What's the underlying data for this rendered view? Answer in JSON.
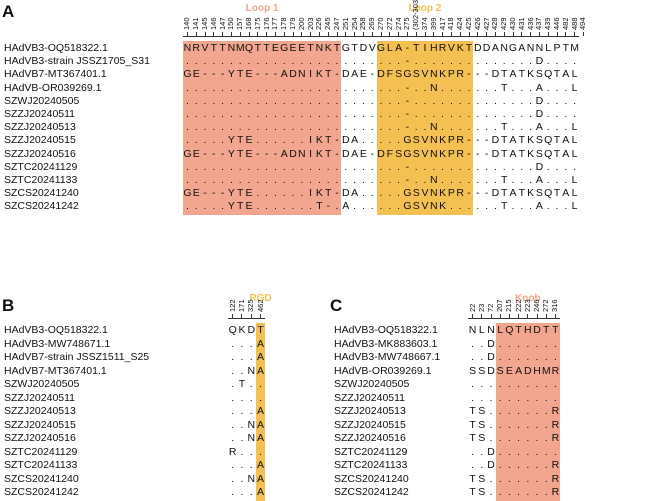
{
  "panels": [
    {
      "id": "A",
      "letter": "A",
      "regions": [
        {
          "label": "Loop 1",
          "start": 0,
          "end": 17,
          "color": "#f2a58f"
        },
        {
          "label": "Loop 2",
          "start": 22,
          "end": 32,
          "color": "#f3c051"
        }
      ],
      "positions": [
        "140",
        "141",
        "145",
        "146",
        "147",
        "150",
        "157",
        "168",
        "175",
        "176",
        "177",
        "178",
        "179",
        "200",
        "203",
        "226",
        "245",
        "247",
        "251",
        "254",
        "258",
        "269",
        "270",
        "272",
        "274",
        "275",
        "(302-303)",
        "374",
        "399",
        "417",
        "418",
        "424",
        "425",
        "426",
        "427",
        "428",
        "429",
        "430",
        "431",
        "436",
        "437",
        "439",
        "446",
        "482",
        "488",
        "494"
      ],
      "rows": [
        {
          "name": "HAdVB3-OQ518322.1",
          "cells": [
            "N",
            "R",
            "V",
            "T",
            "T",
            "N",
            "M",
            "Q",
            "T",
            "T",
            "E",
            "G",
            "E",
            "E",
            "T",
            "N",
            "K",
            "T",
            "G",
            "T",
            "D",
            "V",
            "G",
            "L",
            "A",
            "-",
            "T",
            "I",
            "H",
            "R",
            "V",
            "K",
            "T",
            "D",
            "D",
            "A",
            "N",
            "G",
            "A",
            "N",
            "N",
            "L",
            "P",
            "T",
            "M"
          ]
        },
        {
          "name": "HAdVB3-strain JSSZ1705_S31",
          "cells": [
            "",
            "",
            "",
            "",
            "",
            "",
            "",
            "",
            "",
            "",
            "",
            "",
            "",
            "",
            "",
            "",
            "",
            "",
            "",
            "",
            "",
            "",
            "",
            "",
            "",
            "-",
            "",
            "",
            "",
            "",
            "",
            "",
            "",
            "",
            "",
            "",
            "",
            "",
            "",
            "",
            "D",
            "",
            "",
            "",
            ""
          ]
        },
        {
          "name": "HAdVB7-MT367401.1",
          "cells": [
            "G",
            "E",
            "-",
            "-",
            "-",
            "Y",
            "T",
            "E",
            "-",
            "-",
            "-",
            "A",
            "D",
            "N",
            "I",
            "K",
            "T",
            "-",
            "D",
            "A",
            "E",
            "-",
            "D",
            "F",
            "S",
            "G",
            "S",
            "V",
            "N",
            "K",
            "P",
            "R",
            "-",
            "-",
            "-",
            "D",
            "T",
            "A",
            "T",
            "K",
            "S",
            "Q",
            "T",
            "A",
            "L"
          ]
        },
        {
          "name": "HAdVB-OR039269.1",
          "cells": [
            "",
            "",
            "",
            "",
            "",
            "",
            "",
            "",
            "",
            "",
            "",
            "",
            "",
            "",
            "",
            "",
            "",
            "",
            "",
            "",
            "",
            "",
            "",
            "",
            "",
            "-",
            "",
            "",
            "N",
            "",
            "",
            "",
            "",
            "",
            "",
            "",
            "T",
            "",
            "",
            "",
            "A",
            "",
            "",
            "",
            "L"
          ]
        },
        {
          "name": "SZWJ20240505",
          "cells": [
            "",
            "",
            "",
            "",
            "",
            "",
            "",
            "",
            "",
            "",
            "",
            "",
            "",
            "",
            "",
            "",
            "",
            "",
            "",
            "",
            "",
            "",
            "",
            "",
            "",
            "-",
            "",
            "",
            "",
            "",
            "",
            "",
            "",
            "",
            "",
            "",
            "",
            "",
            "",
            "",
            "D",
            "",
            "",
            "",
            ""
          ]
        },
        {
          "name": "SZZJ20240511",
          "cells": [
            "",
            "",
            "",
            "",
            "",
            "",
            "",
            "",
            "",
            "",
            "",
            "",
            "",
            "",
            "",
            "",
            "",
            "",
            "",
            "",
            "",
            "",
            "",
            "",
            "",
            "-",
            "",
            "",
            "",
            "",
            "",
            "",
            "",
            "",
            "",
            "",
            "",
            "",
            "",
            "",
            "D",
            "",
            "",
            "",
            ""
          ]
        },
        {
          "name": "SZZJ20240513",
          "cells": [
            "",
            "",
            "",
            "",
            "",
            "",
            "",
            "",
            "",
            "",
            "",
            "",
            "",
            "",
            "",
            "",
            "",
            "",
            "",
            "",
            "",
            "",
            "",
            "",
            "",
            "-",
            "",
            "",
            "N",
            "",
            "",
            "",
            "",
            "",
            "",
            "",
            "T",
            "",
            "",
            "",
            "A",
            "",
            "",
            "",
            "L"
          ]
        },
        {
          "name": "SZZJ20240515",
          "cells": [
            "",
            "",
            "",
            "",
            "",
            "Y",
            "T",
            "E",
            "",
            "",
            "",
            "",
            "",
            "",
            "I",
            "K",
            "T",
            "-",
            "D",
            "A",
            "",
            "",
            "",
            "",
            "",
            "G",
            "S",
            "V",
            "N",
            "K",
            "P",
            "R",
            "-",
            "-",
            "-",
            "D",
            "T",
            "A",
            "T",
            "K",
            "S",
            "Q",
            "T",
            "A",
            "L"
          ]
        },
        {
          "name": "SZZJ20240516",
          "cells": [
            "G",
            "E",
            "-",
            "-",
            "-",
            "Y",
            "T",
            "E",
            "-",
            "-",
            "-",
            "A",
            "D",
            "N",
            "I",
            "K",
            "T",
            "-",
            "D",
            "A",
            "E",
            "-",
            "D",
            "F",
            "S",
            "G",
            "S",
            "V",
            "N",
            "K",
            "P",
            "R",
            "-",
            "-",
            "-",
            "D",
            "T",
            "A",
            "T",
            "K",
            "S",
            "Q",
            "T",
            "A",
            "L"
          ]
        },
        {
          "name": "SZTC20241129",
          "cells": [
            "",
            "",
            "",
            "",
            "",
            "",
            "",
            "",
            "",
            "",
            "",
            "",
            "",
            "",
            "",
            "",
            "",
            "",
            "",
            "",
            "",
            "",
            "",
            "",
            "",
            "-",
            "",
            "",
            "",
            "",
            "",
            "",
            "",
            "",
            "",
            "",
            "",
            "",
            "",
            "",
            "D",
            "",
            "",
            "",
            ""
          ]
        },
        {
          "name": "SZTC20241133",
          "cells": [
            "",
            "",
            "",
            "",
            "",
            "",
            "",
            "",
            "",
            "",
            "",
            "",
            "",
            "",
            "",
            "",
            "",
            "",
            "",
            "",
            "",
            "",
            "",
            "",
            "",
            "-",
            "",
            "",
            "N",
            "",
            "",
            "",
            "",
            "",
            "",
            "",
            "T",
            "",
            "",
            "",
            "A",
            "",
            "",
            "",
            "L"
          ]
        },
        {
          "name": "SZCS20241240",
          "cells": [
            "G",
            "E",
            "-",
            "-",
            "-",
            "Y",
            "T",
            "E",
            "",
            "",
            "",
            "",
            "",
            "",
            "I",
            "K",
            "T",
            "-",
            "D",
            "A",
            "",
            "",
            "",
            "",
            "",
            "G",
            "S",
            "V",
            "N",
            "K",
            "P",
            "R",
            "-",
            "-",
            "-",
            "D",
            "T",
            "A",
            "T",
            "K",
            "S",
            "Q",
            "T",
            "A",
            "L"
          ]
        },
        {
          "name": "SZCS20241242",
          "cells": [
            "",
            "",
            "",
            "",
            "",
            "Y",
            "T",
            "E",
            "",
            "",
            "",
            "",
            "",
            "",
            "",
            "T",
            "-",
            "",
            "A",
            "",
            "",
            "",
            "",
            "",
            "",
            "G",
            "S",
            "V",
            "N",
            "K",
            "",
            "",
            "",
            "",
            "",
            "",
            "T",
            "",
            "",
            "",
            "A",
            "",
            "",
            "",
            "L"
          ]
        }
      ]
    },
    {
      "id": "B",
      "letter": "B",
      "regions": [
        {
          "label": "RGD",
          "start": 3,
          "end": 3,
          "color": "#f3c051"
        }
      ],
      "positions": [
        "122",
        "171",
        "325",
        "462"
      ],
      "rows": [
        {
          "name": "HAdVB3-OQ518322.1",
          "cells": [
            "Q",
            "K",
            "D",
            "T"
          ]
        },
        {
          "name": "HAdVB3-MW748671.1",
          "cells": [
            "",
            "",
            "",
            "A"
          ]
        },
        {
          "name": "HAdVB7-strain JSSZ1511_S25",
          "cells": [
            "",
            "",
            "",
            "A"
          ]
        },
        {
          "name": "HAdVB7-MT367401.1",
          "cells": [
            "",
            "",
            "N",
            "A"
          ]
        },
        {
          "name": "SZWJ20240505",
          "cells": [
            "",
            "T",
            "",
            ""
          ]
        },
        {
          "name": "SZZJ20240511",
          "cells": [
            "",
            "",
            "",
            ""
          ]
        },
        {
          "name": "SZZJ20240513",
          "cells": [
            "",
            "",
            "",
            "A"
          ]
        },
        {
          "name": "SZZJ20240515",
          "cells": [
            "",
            "",
            "N",
            "A"
          ]
        },
        {
          "name": "SZZJ20240516",
          "cells": [
            "",
            "",
            "N",
            "A"
          ]
        },
        {
          "name": "SZTC20241129",
          "cells": [
            "R",
            "",
            "",
            ""
          ]
        },
        {
          "name": "SZTC20241133",
          "cells": [
            "",
            "",
            "",
            "A"
          ]
        },
        {
          "name": "SZCS20241240",
          "cells": [
            "",
            "",
            "N",
            "A"
          ]
        },
        {
          "name": "SZCS20241242",
          "cells": [
            "",
            "",
            "",
            "A"
          ]
        }
      ]
    },
    {
      "id": "C",
      "letter": "C",
      "regions": [
        {
          "label": "Knob",
          "start": 3,
          "end": 9,
          "color": "#f2a58f"
        }
      ],
      "positions": [
        "22",
        "23",
        "72",
        "207",
        "215",
        "222",
        "223",
        "246",
        "272",
        "316"
      ],
      "rows": [
        {
          "name": "HAdVB3-OQ518322.1",
          "cells": [
            "N",
            "L",
            "N",
            "L",
            "Q",
            "T",
            "H",
            "D",
            "T",
            "T"
          ]
        },
        {
          "name": "HAdVB3-MK883603.1",
          "cells": [
            "",
            "",
            "D",
            "",
            "",
            "",
            "",
            "",
            "",
            ""
          ]
        },
        {
          "name": "HAdVB3-MW748667.1",
          "cells": [
            "",
            "",
            "D",
            "",
            "",
            "",
            "",
            "",
            "",
            ""
          ]
        },
        {
          "name": "HAdVB-OR039269.1",
          "cells": [
            "S",
            "S",
            "D",
            "S",
            "E",
            "A",
            "D",
            "H",
            "M",
            "R"
          ]
        },
        {
          "name": "SZWJ20240505",
          "cells": [
            "",
            "",
            "",
            "",
            "",
            "",
            "",
            "",
            "",
            ""
          ]
        },
        {
          "name": "SZZJ20240511",
          "cells": [
            "",
            "",
            "",
            "",
            "",
            "",
            "",
            "",
            "",
            ""
          ]
        },
        {
          "name": "SZZJ20240513",
          "cells": [
            "T",
            "S",
            "",
            "",
            "",
            "",
            "",
            "",
            "",
            "R"
          ]
        },
        {
          "name": "SZZJ20240515",
          "cells": [
            "T",
            "S",
            "",
            "",
            "",
            "",
            "",
            "",
            "",
            "R"
          ]
        },
        {
          "name": "SZZJ20240516",
          "cells": [
            "T",
            "S",
            "",
            "",
            "",
            "",
            "",
            "",
            "",
            "R"
          ]
        },
        {
          "name": "SZTC20241129",
          "cells": [
            "",
            "",
            "D",
            "",
            "",
            "",
            "",
            "",
            "",
            ""
          ]
        },
        {
          "name": "SZTC20241133",
          "cells": [
            "",
            "",
            "D",
            "",
            "",
            "",
            "",
            "",
            "",
            "R"
          ]
        },
        {
          "name": "SZCS20241240",
          "cells": [
            "T",
            "S",
            "",
            "",
            "",
            "",
            "",
            "",
            "",
            "R"
          ]
        },
        {
          "name": "SZCS20241242",
          "cells": [
            "T",
            "S",
            "",
            "",
            "",
            "",
            "",
            "",
            "",
            "R"
          ]
        }
      ]
    }
  ]
}
